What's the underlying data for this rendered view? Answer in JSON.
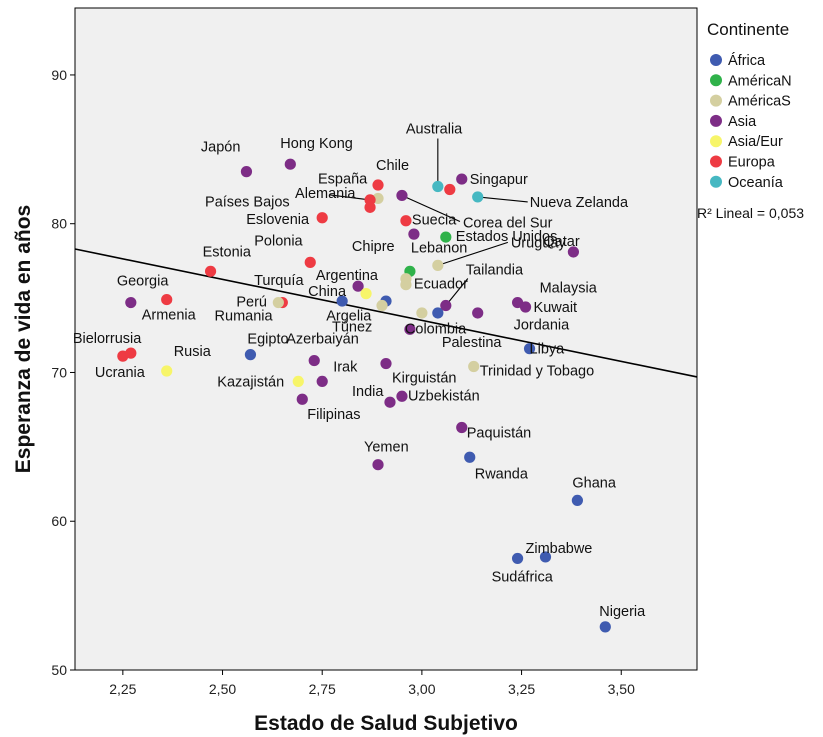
{
  "chart_data": {
    "type": "scatter",
    "xlabel": "Estado de Salud Subjetivo",
    "ylabel": "Esperanza de vida en años",
    "xlim": [
      2.13,
      3.69
    ],
    "ylim": [
      50,
      94.5
    ],
    "x_ticks": [
      {
        "value": 2.25,
        "label": "2,25"
      },
      {
        "value": 2.5,
        "label": "2,50"
      },
      {
        "value": 2.75,
        "label": "2,75"
      },
      {
        "value": 3.0,
        "label": "3,00"
      },
      {
        "value": 3.25,
        "label": "3,25"
      },
      {
        "value": 3.5,
        "label": "3,50"
      }
    ],
    "y_ticks": [
      {
        "value": 50,
        "label": "50"
      },
      {
        "value": 60,
        "label": "60"
      },
      {
        "value": 70,
        "label": "70"
      },
      {
        "value": 80,
        "label": "80"
      },
      {
        "value": 90,
        "label": "90"
      }
    ],
    "grid": false,
    "legend": {
      "title": "Continente",
      "placement": "right",
      "items": [
        {
          "key": "africa",
          "name": "África",
          "color": "#3f5bb0"
        },
        {
          "key": "americaN",
          "name": "AméricaN",
          "color": "#2fb24a"
        },
        {
          "key": "americaS",
          "name": "AméricaS",
          "color": "#d4cfa0"
        },
        {
          "key": "asia",
          "name": "Asia",
          "color": "#7d2d86"
        },
        {
          "key": "asiaeur",
          "name": "Asia/Eur",
          "color": "#f7f569"
        },
        {
          "key": "europa",
          "name": "Europa",
          "color": "#ee3b43"
        },
        {
          "key": "oceania",
          "name": "Oceanía",
          "color": "#46b8c2"
        }
      ]
    },
    "fit_line": {
      "label": "R² Lineal = 0,053",
      "x": [
        2.13,
        3.69
      ],
      "y": [
        78.3,
        69.7
      ]
    },
    "points": [
      {
        "x": 2.56,
        "y": 83.5,
        "continent": "asia",
        "label": "Japón"
      },
      {
        "x": 2.67,
        "y": 84.0,
        "continent": "asia",
        "label": "Hong Kong"
      },
      {
        "x": 2.89,
        "y": 82.6,
        "continent": "europa",
        "label": "Chile"
      },
      {
        "x": 2.89,
        "y": 81.7,
        "continent": "americaS",
        "label": "España"
      },
      {
        "x": 2.87,
        "y": 81.6,
        "continent": "europa",
        "label": "Alemania"
      },
      {
        "x": 2.87,
        "y": 81.1,
        "continent": "europa",
        "label": "Países Bajos"
      },
      {
        "x": 2.75,
        "y": 80.4,
        "continent": "europa",
        "label": "Eslovenia"
      },
      {
        "x": 3.04,
        "y": 82.5,
        "continent": "oceania",
        "label": "Australia"
      },
      {
        "x": 3.07,
        "y": 82.3,
        "continent": "europa",
        "label": ""
      },
      {
        "x": 3.1,
        "y": 83.0,
        "continent": "asia",
        "label": "Singapur"
      },
      {
        "x": 3.14,
        "y": 81.8,
        "continent": "oceania",
        "label": "Nueva Zelanda"
      },
      {
        "x": 2.95,
        "y": 81.9,
        "continent": "asia",
        "label": "Corea del Sur"
      },
      {
        "x": 2.96,
        "y": 80.2,
        "continent": "europa",
        "label": "Suecia"
      },
      {
        "x": 2.98,
        "y": 79.3,
        "continent": "asia",
        "label": "Chipre"
      },
      {
        "x": 3.06,
        "y": 79.1,
        "continent": "americaN",
        "label": "Estados Unidos"
      },
      {
        "x": 3.38,
        "y": 78.1,
        "continent": "asia",
        "label": "Qatar"
      },
      {
        "x": 2.47,
        "y": 76.8,
        "continent": "europa",
        "label": "Estonia"
      },
      {
        "x": 2.72,
        "y": 77.4,
        "continent": "europa",
        "label": "Polonia"
      },
      {
        "x": 2.97,
        "y": 76.8,
        "continent": "americaN",
        "label": "Lebanon"
      },
      {
        "x": 3.04,
        "y": 77.2,
        "continent": "americaS",
        "label": "Uruguay"
      },
      {
        "x": 2.96,
        "y": 76.3,
        "continent": "americaS",
        "label": "Argentina"
      },
      {
        "x": 2.96,
        "y": 75.9,
        "continent": "americaS",
        "label": "Ecuador"
      },
      {
        "x": 2.84,
        "y": 75.8,
        "continent": "asia",
        "label": "Turquía"
      },
      {
        "x": 2.86,
        "y": 75.3,
        "continent": "asiaeur",
        "label": ""
      },
      {
        "x": 2.8,
        "y": 74.8,
        "continent": "africa",
        "label": "China"
      },
      {
        "x": 2.91,
        "y": 74.8,
        "continent": "africa",
        "label": ""
      },
      {
        "x": 2.9,
        "y": 74.5,
        "continent": "americaS",
        "label": "Túnez"
      },
      {
        "x": 2.65,
        "y": 74.7,
        "continent": "europa",
        "label": "Perú"
      },
      {
        "x": 2.64,
        "y": 74.7,
        "continent": "americaS",
        "label": ""
      },
      {
        "x": 3.0,
        "y": 74.0,
        "continent": "americaS",
        "label": ""
      },
      {
        "x": 3.04,
        "y": 74.0,
        "continent": "africa",
        "label": ""
      },
      {
        "x": 3.06,
        "y": 74.5,
        "continent": "asia",
        "label": "Tailandia"
      },
      {
        "x": 3.14,
        "y": 74.0,
        "continent": "asia",
        "label": ""
      },
      {
        "x": 3.24,
        "y": 74.7,
        "continent": "asia",
        "label": "Malaysia"
      },
      {
        "x": 3.26,
        "y": 74.4,
        "continent": "asia",
        "label": "Kuwait"
      },
      {
        "x": 2.27,
        "y": 74.7,
        "continent": "asia",
        "label": "Georgia"
      },
      {
        "x": 2.36,
        "y": 74.9,
        "continent": "europa",
        "label": "Armenia"
      },
      {
        "x": 2.97,
        "y": 72.9,
        "continent": "asia",
        "label": "Colombia"
      },
      {
        "x": 3.27,
        "y": 71.6,
        "continent": "africa",
        "label": "Libya"
      },
      {
        "x": 2.25,
        "y": 71.1,
        "continent": "europa",
        "label": "Ucrania"
      },
      {
        "x": 2.27,
        "y": 71.3,
        "continent": "europa",
        "label": "Bielorrusia"
      },
      {
        "x": 2.36,
        "y": 70.1,
        "continent": "asiaeur",
        "label": "Rusia"
      },
      {
        "x": 2.57,
        "y": 71.2,
        "continent": "africa",
        "label": "Egipto"
      },
      {
        "x": 2.73,
        "y": 70.8,
        "continent": "asia",
        "label": "Azerbaiyán"
      },
      {
        "x": 2.91,
        "y": 70.6,
        "continent": "asia",
        "label": "Kirguistán"
      },
      {
        "x": 3.13,
        "y": 70.4,
        "continent": "americaS",
        "label": "Trinidad y Tobago"
      },
      {
        "x": 2.69,
        "y": 69.4,
        "continent": "asiaeur",
        "label": "Kazajistán"
      },
      {
        "x": 2.75,
        "y": 69.4,
        "continent": "asia",
        "label": "Irak"
      },
      {
        "x": 2.7,
        "y": 68.2,
        "continent": "asia",
        "label": "Filipinas"
      },
      {
        "x": 2.95,
        "y": 68.4,
        "continent": "asia",
        "label": "Uzbekistán"
      },
      {
        "x": 2.92,
        "y": 68.0,
        "continent": "asia",
        "label": "India"
      },
      {
        "x": 3.1,
        "y": 66.3,
        "continent": "asia",
        "label": "Paquistán"
      },
      {
        "x": 3.12,
        "y": 64.3,
        "continent": "africa",
        "label": "Rwanda"
      },
      {
        "x": 2.89,
        "y": 63.8,
        "continent": "asia",
        "label": "Yemen"
      },
      {
        "x": 3.39,
        "y": 61.4,
        "continent": "africa",
        "label": "Ghana"
      },
      {
        "x": 3.24,
        "y": 57.5,
        "continent": "africa",
        "label": "Sudáfrica"
      },
      {
        "x": 3.31,
        "y": 57.6,
        "continent": "africa",
        "label": "Zimbabwe"
      },
      {
        "x": 3.46,
        "y": 52.9,
        "continent": "africa",
        "label": "Nigeria"
      }
    ],
    "annotations": [
      {
        "label": "Palestina",
        "x": 3.05,
        "y": 71.7
      },
      {
        "label": "Jordania",
        "x": 3.23,
        "y": 72.9
      },
      {
        "label": "Rumania",
        "x": 2.48,
        "y": 73.5
      },
      {
        "label": "Argelia",
        "x": 2.76,
        "y": 73.5
      }
    ]
  }
}
